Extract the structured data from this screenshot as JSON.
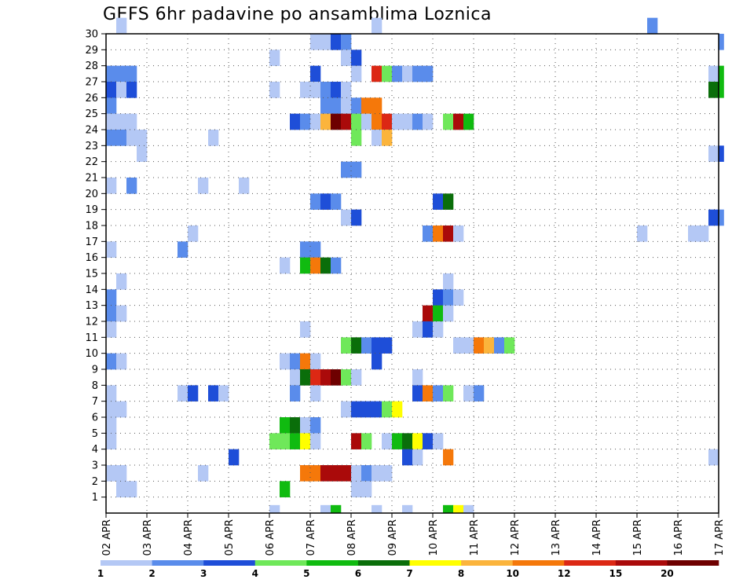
{
  "chart_data": {
    "type": "heatmap",
    "title": "GEFS 6hr padavine po ansamblima Loznica",
    "xlabel": "",
    "ylabel": "",
    "x_tick_labels": [
      "02 APR",
      "03 APR",
      "04 APR",
      "05 APR",
      "06 APR",
      "07 APR",
      "08 APR",
      "09 APR",
      "10 APR",
      "11 APR",
      "12 APR",
      "13 APR",
      "14 APR",
      "15 APR",
      "16 APR",
      "17 APR"
    ],
    "x_range_steps": [
      0,
      60
    ],
    "x_step_hours": 6,
    "y_tick_labels": [
      1,
      2,
      3,
      4,
      5,
      6,
      7,
      8,
      9,
      10,
      11,
      12,
      13,
      14,
      15,
      16,
      17,
      18,
      19,
      20,
      21,
      22,
      23,
      24,
      25,
      26,
      27,
      28,
      29,
      30
    ],
    "ylim": [
      0,
      30
    ],
    "grid": true,
    "grid_style": "dotted",
    "colorbar": {
      "position": "bottom",
      "tick_labels": [
        "1",
        "2",
        "3",
        "4",
        "5",
        "6",
        "7",
        "8",
        "10",
        "12",
        "15",
        "20"
      ],
      "colors": [
        "#b4c8f5",
        "#5a8ceb",
        "#1e4ed8",
        "#6fe85a",
        "#10bb10",
        "#0a6e0a",
        "#ffff00",
        "#fbb43c",
        "#f5780a",
        "#dc2814",
        "#aa0a0a",
        "#6e0000"
      ]
    },
    "cells": [
      [
        30,
        1,
        1
      ],
      [
        30,
        26,
        1
      ],
      [
        30,
        53,
        2
      ],
      [
        29,
        20,
        1
      ],
      [
        29,
        21,
        1
      ],
      [
        29,
        22,
        3
      ],
      [
        29,
        23,
        2
      ],
      [
        29,
        60,
        2
      ],
      [
        28,
        16,
        1
      ],
      [
        28,
        23,
        1
      ],
      [
        28,
        24,
        3
      ],
      [
        27,
        0,
        2
      ],
      [
        27,
        1,
        2
      ],
      [
        27,
        2,
        2
      ],
      [
        27,
        20,
        3
      ],
      [
        27,
        24,
        1
      ],
      [
        27,
        26,
        10
      ],
      [
        27,
        27,
        4
      ],
      [
        27,
        28,
        2
      ],
      [
        27,
        29,
        1
      ],
      [
        27,
        30,
        2
      ],
      [
        27,
        31,
        2
      ],
      [
        27,
        59,
        1
      ],
      [
        27,
        60,
        5
      ],
      [
        26,
        0,
        3
      ],
      [
        26,
        1,
        1
      ],
      [
        26,
        2,
        3
      ],
      [
        26,
        16,
        1
      ],
      [
        26,
        19,
        1
      ],
      [
        26,
        20,
        1
      ],
      [
        26,
        21,
        2
      ],
      [
        26,
        22,
        3
      ],
      [
        26,
        23,
        1
      ],
      [
        26,
        59,
        6
      ],
      [
        26,
        60,
        5
      ],
      [
        25,
        0,
        2
      ],
      [
        25,
        21,
        2
      ],
      [
        25,
        22,
        2
      ],
      [
        25,
        23,
        1
      ],
      [
        25,
        24,
        2
      ],
      [
        25,
        25,
        9
      ],
      [
        25,
        26,
        9
      ],
      [
        24,
        0,
        1
      ],
      [
        24,
        1,
        1
      ],
      [
        24,
        2,
        1
      ],
      [
        24,
        18,
        3
      ],
      [
        24,
        19,
        2
      ],
      [
        24,
        20,
        1
      ],
      [
        24,
        21,
        8
      ],
      [
        24,
        22,
        12
      ],
      [
        24,
        23,
        11
      ],
      [
        24,
        24,
        4
      ],
      [
        24,
        25,
        1
      ],
      [
        24,
        26,
        9
      ],
      [
        24,
        27,
        10
      ],
      [
        24,
        28,
        1
      ],
      [
        24,
        29,
        1
      ],
      [
        24,
        30,
        2
      ],
      [
        24,
        31,
        1
      ],
      [
        24,
        33,
        4
      ],
      [
        24,
        34,
        11
      ],
      [
        24,
        35,
        5
      ],
      [
        23,
        0,
        2
      ],
      [
        23,
        1,
        2
      ],
      [
        23,
        2,
        1
      ],
      [
        23,
        3,
        1
      ],
      [
        23,
        10,
        1
      ],
      [
        23,
        24,
        4
      ],
      [
        23,
        26,
        1
      ],
      [
        23,
        27,
        8
      ],
      [
        22,
        3,
        1
      ],
      [
        22,
        59,
        1
      ],
      [
        22,
        60,
        3
      ],
      [
        21,
        23,
        2
      ],
      [
        21,
        24,
        2
      ],
      [
        20,
        0,
        1
      ],
      [
        20,
        2,
        2
      ],
      [
        20,
        9,
        1
      ],
      [
        20,
        13,
        1
      ],
      [
        19,
        20,
        2
      ],
      [
        19,
        21,
        3
      ],
      [
        19,
        22,
        2
      ],
      [
        19,
        32,
        3
      ],
      [
        19,
        33,
        6
      ],
      [
        18,
        23,
        1
      ],
      [
        18,
        24,
        3
      ],
      [
        18,
        59,
        3
      ],
      [
        18,
        60,
        2
      ],
      [
        17,
        8,
        1
      ],
      [
        17,
        52,
        1
      ],
      [
        17,
        31,
        2
      ],
      [
        17,
        32,
        9
      ],
      [
        17,
        33,
        11
      ],
      [
        17,
        34,
        1
      ],
      [
        17,
        57,
        1
      ],
      [
        17,
        58,
        1
      ],
      [
        16,
        0,
        1
      ],
      [
        16,
        7,
        2
      ],
      [
        16,
        19,
        2
      ],
      [
        16,
        20,
        2
      ],
      [
        15,
        17,
        1
      ],
      [
        15,
        19,
        5
      ],
      [
        15,
        20,
        9
      ],
      [
        15,
        21,
        6
      ],
      [
        15,
        22,
        2
      ],
      [
        14,
        1,
        1
      ],
      [
        14,
        33,
        1
      ],
      [
        13,
        0,
        2
      ],
      [
        13,
        32,
        3
      ],
      [
        13,
        33,
        2
      ],
      [
        13,
        34,
        1
      ],
      [
        12,
        0,
        2
      ],
      [
        12,
        1,
        1
      ],
      [
        12,
        31,
        11
      ],
      [
        12,
        32,
        5
      ],
      [
        12,
        33,
        1
      ],
      [
        11,
        0,
        1
      ],
      [
        11,
        19,
        1
      ],
      [
        11,
        30,
        1
      ],
      [
        11,
        31,
        3
      ],
      [
        11,
        32,
        1
      ],
      [
        10,
        23,
        4
      ],
      [
        10,
        24,
        6
      ],
      [
        10,
        25,
        2
      ],
      [
        10,
        26,
        3
      ],
      [
        10,
        27,
        3
      ],
      [
        10,
        34,
        1
      ],
      [
        10,
        35,
        1
      ],
      [
        10,
        36,
        9
      ],
      [
        10,
        37,
        8
      ],
      [
        10,
        38,
        2
      ],
      [
        10,
        39,
        4
      ],
      [
        9,
        0,
        2
      ],
      [
        9,
        1,
        1
      ],
      [
        9,
        17,
        1
      ],
      [
        9,
        18,
        2
      ],
      [
        9,
        19,
        9
      ],
      [
        9,
        20,
        1
      ],
      [
        9,
        26,
        3
      ],
      [
        8,
        18,
        1
      ],
      [
        8,
        19,
        6
      ],
      [
        8,
        20,
        10
      ],
      [
        8,
        21,
        11
      ],
      [
        8,
        22,
        12
      ],
      [
        8,
        23,
        4
      ],
      [
        8,
        24,
        1
      ],
      [
        8,
        30,
        1
      ],
      [
        7,
        0,
        1
      ],
      [
        7,
        7,
        1
      ],
      [
        7,
        8,
        3
      ],
      [
        7,
        10,
        3
      ],
      [
        7,
        11,
        1
      ],
      [
        7,
        18,
        2
      ],
      [
        7,
        20,
        1
      ],
      [
        7,
        30,
        3
      ],
      [
        7,
        31,
        9
      ],
      [
        7,
        32,
        2
      ],
      [
        7,
        33,
        4
      ],
      [
        7,
        35,
        1
      ],
      [
        7,
        36,
        2
      ],
      [
        6,
        0,
        1
      ],
      [
        6,
        1,
        1
      ],
      [
        6,
        23,
        1
      ],
      [
        6,
        24,
        3
      ],
      [
        6,
        25,
        3
      ],
      [
        6,
        26,
        3
      ],
      [
        6,
        27,
        4
      ],
      [
        6,
        28,
        7
      ],
      [
        5,
        0,
        1
      ],
      [
        5,
        17,
        5
      ],
      [
        5,
        18,
        6
      ],
      [
        5,
        19,
        1
      ],
      [
        5,
        20,
        2
      ],
      [
        4,
        0,
        1
      ],
      [
        4,
        16,
        4
      ],
      [
        4,
        17,
        4
      ],
      [
        4,
        18,
        5
      ],
      [
        4,
        19,
        7
      ],
      [
        4,
        20,
        1
      ],
      [
        4,
        24,
        11
      ],
      [
        4,
        25,
        4
      ],
      [
        4,
        27,
        1
      ],
      [
        4,
        28,
        5
      ],
      [
        4,
        29,
        6
      ],
      [
        4,
        30,
        7
      ],
      [
        4,
        31,
        3
      ],
      [
        4,
        32,
        1
      ],
      [
        3,
        12,
        3
      ],
      [
        3,
        29,
        3
      ],
      [
        3,
        30,
        1
      ],
      [
        3,
        33,
        9
      ],
      [
        3,
        59,
        1
      ],
      [
        2,
        0,
        1
      ],
      [
        2,
        1,
        1
      ],
      [
        2,
        9,
        1
      ],
      [
        2,
        19,
        9
      ],
      [
        2,
        20,
        9
      ],
      [
        2,
        21,
        11
      ],
      [
        2,
        22,
        11
      ],
      [
        2,
        23,
        11
      ],
      [
        2,
        24,
        1
      ],
      [
        2,
        25,
        2
      ],
      [
        2,
        26,
        1
      ],
      [
        2,
        27,
        1
      ],
      [
        1,
        1,
        1
      ],
      [
        1,
        2,
        1
      ],
      [
        1,
        17,
        5
      ],
      [
        1,
        24,
        1
      ],
      [
        1,
        25,
        1
      ],
      [
        0,
        16,
        1
      ],
      [
        0,
        21,
        1
      ],
      [
        0,
        22,
        5
      ],
      [
        0,
        26,
        1
      ],
      [
        0,
        29,
        1
      ],
      [
        0,
        33,
        5
      ],
      [
        0,
        34,
        7
      ],
      [
        0,
        35,
        1
      ]
    ]
  }
}
